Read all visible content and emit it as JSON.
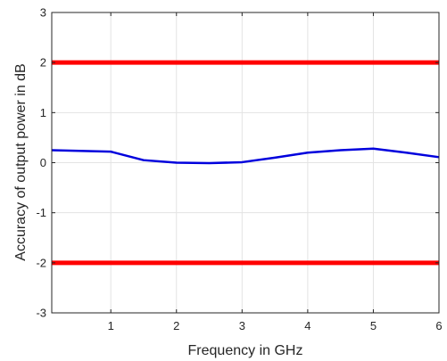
{
  "chart_data": {
    "type": "line",
    "title": "",
    "xlabel": "Frequency in GHz",
    "ylabel": "Accuracy of output power in dB",
    "xlim": [
      0.1,
      6
    ],
    "ylim": [
      -3,
      3
    ],
    "x_ticks": [
      1,
      2,
      3,
      4,
      5,
      6
    ],
    "x_tick_labels": [
      "1",
      "2",
      "3",
      "4",
      "5",
      "6"
    ],
    "y_ticks": [
      -3,
      -2,
      -1,
      0,
      1,
      2,
      3
    ],
    "y_tick_labels": [
      "-3",
      "-2",
      "-1",
      "0",
      "1",
      "2",
      "3"
    ],
    "grid": true,
    "legend": "none",
    "series": [
      {
        "color": "#0000dd",
        "x": [
          0.1,
          1,
          1.5,
          2,
          2.5,
          3,
          3.5,
          4,
          4.5,
          5,
          5.5,
          6
        ],
        "y": [
          0.25,
          0.22,
          0.05,
          0.0,
          -0.01,
          0.01,
          0.1,
          0.2,
          0.25,
          0.28,
          0.2,
          0.11
        ]
      },
      {
        "color": "#ff0000",
        "x": [
          0.1,
          6
        ],
        "y": [
          2,
          2
        ]
      },
      {
        "color": "#ff0000",
        "x": [
          0.1,
          6
        ],
        "y": [
          -2,
          -2
        ]
      }
    ]
  }
}
